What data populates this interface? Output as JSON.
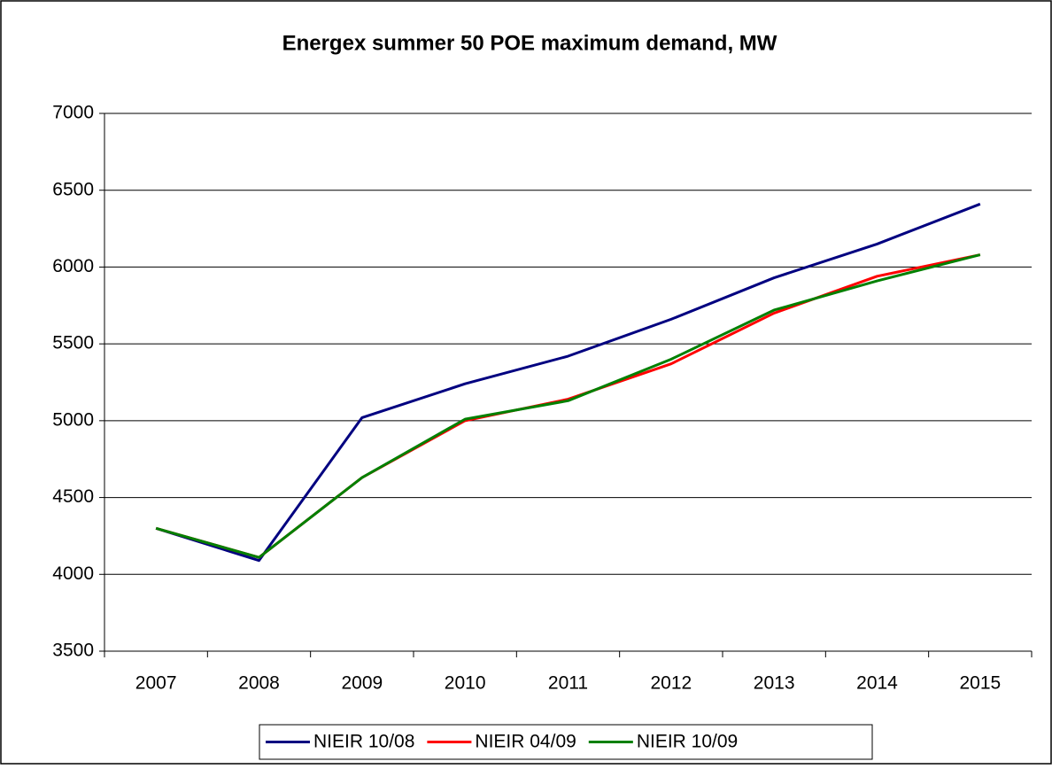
{
  "chart_data": {
    "type": "line",
    "title": "Energex summer 50 POE maximum demand, MW",
    "categories": [
      "2007",
      "2008",
      "2009",
      "2010",
      "2011",
      "2012",
      "2013",
      "2014",
      "2015"
    ],
    "series": [
      {
        "name": "NIEIR 10/08",
        "color": "#000080",
        "values": [
          4300,
          4090,
          5020,
          5240,
          5420,
          5660,
          5930,
          6150,
          6410
        ]
      },
      {
        "name": "NIEIR 04/09",
        "color": "#ff0000",
        "values": [
          4300,
          4110,
          4630,
          5000,
          5140,
          5370,
          5700,
          5940,
          6080
        ]
      },
      {
        "name": "NIEIR 10/09",
        "color": "#008000",
        "values": [
          4300,
          4110,
          4630,
          5010,
          5130,
          5400,
          5720,
          5910,
          6080
        ]
      }
    ],
    "ylim": [
      3500,
      7000
    ],
    "yticks": [
      3500,
      4000,
      4500,
      5000,
      5500,
      6000,
      6500,
      7000
    ],
    "grid": true,
    "legend": "bottom"
  }
}
